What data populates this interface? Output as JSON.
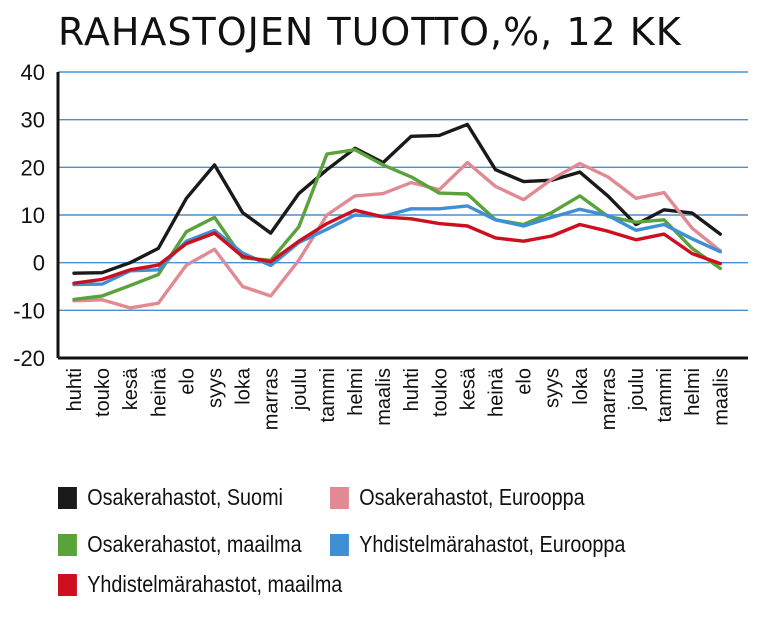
{
  "chart_data": {
    "type": "line",
    "title": "RAHASTOJEN TUOTTO,%, 12 KK",
    "xlabel": "",
    "ylabel": "",
    "ylim": [
      -20,
      40
    ],
    "yticks": [
      -20,
      -10,
      0,
      10,
      20,
      30,
      40
    ],
    "grid": "horizontal",
    "legend_position": "bottom",
    "categories": [
      "huhti",
      "touko",
      "kesä",
      "heinä",
      "elo",
      "syys",
      "loka",
      "marras",
      "joulu",
      "tammi",
      "helmi",
      "maalis",
      "huhti",
      "touko",
      "kesä",
      "heinä",
      "elo",
      "syys",
      "loka",
      "marras",
      "joulu",
      "tammi",
      "helmi",
      "maalis"
    ],
    "series": [
      {
        "name": "Osakerahastot, Suomi",
        "color": "#1a1a1a",
        "values": [
          -2.2,
          -2.1,
          0,
          3,
          13.5,
          20.5,
          10.5,
          6.2,
          14.5,
          19.5,
          24,
          21,
          26.5,
          26.7,
          29,
          19.5,
          17,
          17.3,
          19,
          14,
          8,
          11.1,
          10.4,
          6
        ]
      },
      {
        "name": "Osakerahastot, Eurooppa",
        "color": "#e18a94",
        "values": [
          -8,
          -7.8,
          -9.5,
          -8.5,
          -0.5,
          2.8,
          -5,
          -7,
          0.5,
          10,
          14,
          14.5,
          16.8,
          15.3,
          21,
          16,
          13.2,
          17.5,
          20.8,
          18,
          13.5,
          14.7,
          7.2,
          2.5
        ]
      },
      {
        "name": "Osakerahastot, maailma",
        "color": "#5aa23a",
        "values": [
          -7.7,
          -7,
          -4.8,
          -2.5,
          6.5,
          9.5,
          1,
          0.5,
          7.5,
          22.8,
          23.7,
          20.5,
          18,
          14.6,
          14.4,
          9,
          8,
          10.5,
          14,
          9.7,
          8.5,
          9,
          3,
          -1.2
        ]
      },
      {
        "name": "Yhdistelmärahastot, Eurooppa",
        "color": "#3f8fd4",
        "values": [
          -4.6,
          -4.5,
          -1.7,
          -1.5,
          4.5,
          6.8,
          2,
          -0.6,
          4.2,
          7,
          10,
          9.7,
          11.3,
          11.3,
          11.9,
          9,
          7.7,
          9.5,
          11.2,
          9.9,
          6.8,
          8,
          5,
          2.3
        ]
      },
      {
        "name": "Yhdistelmärahastot, maailma",
        "color": "#cc1020",
        "values": [
          -4.3,
          -3.5,
          -1.5,
          -0.5,
          4,
          6.2,
          1.3,
          0.2,
          4.5,
          8.2,
          11,
          9.6,
          9.2,
          8.2,
          7.7,
          5.2,
          4.5,
          5.6,
          8,
          6.6,
          4.8,
          6,
          1.9,
          -0.2
        ]
      }
    ]
  }
}
